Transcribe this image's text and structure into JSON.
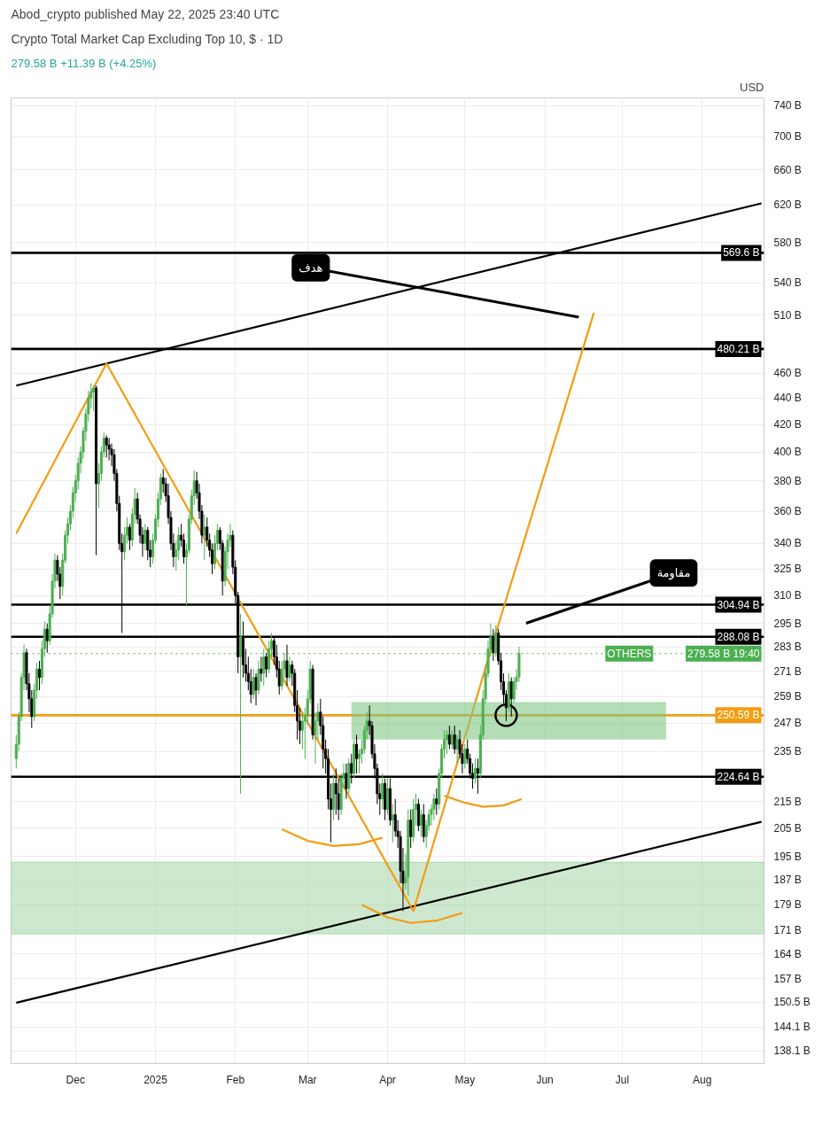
{
  "chart_data": {
    "type": "candlestick",
    "title": "Crypto Total Market Cap Excluding Top 10, $ · 1D",
    "subtitle": "279.58 B  +11.39 B (+4.25%)",
    "ylabel": "USD",
    "annotations": [
      "Abod_crypto published May 22, 2025 23:40 UTC",
      "هدف",
      "مقاومة",
      {
        "text": "OTHERS",
        "x": "2025-07-13",
        "y": 279.58
      }
    ],
    "log": true,
    "grid": true,
    "xlim": [
      "2024-11-06",
      "2025-08-25"
    ],
    "ylim": [
      135,
      750
    ],
    "xticks": [
      {
        "value": "2024-12-01",
        "label": "Dec"
      },
      {
        "value": "2025-01-01",
        "label": "2025"
      },
      {
        "value": "2025-02-01",
        "label": "Feb"
      },
      {
        "value": "2025-03-01",
        "label": "Mar"
      },
      {
        "value": "2025-04-01",
        "label": "Apr"
      },
      {
        "value": "2025-05-01",
        "label": "May"
      },
      {
        "value": "2025-06-01",
        "label": "Jun"
      },
      {
        "value": "2025-07-01",
        "label": "Jul"
      },
      {
        "value": "2025-08-01",
        "label": "Aug"
      }
    ],
    "yticks": [
      {
        "value": 740,
        "label": "740 B"
      },
      {
        "value": 700,
        "label": "700 B"
      },
      {
        "value": 660,
        "label": "660 B"
      },
      {
        "value": 620,
        "label": "620 B"
      },
      {
        "value": 580,
        "label": "580 B"
      },
      {
        "value": 540,
        "label": "540 B"
      },
      {
        "value": 510,
        "label": "510 B"
      },
      {
        "value": 460,
        "label": "460 B"
      },
      {
        "value": 440,
        "label": "440 B"
      },
      {
        "value": 420,
        "label": "420 B"
      },
      {
        "value": 400,
        "label": "400 B"
      },
      {
        "value": 380,
        "label": "380 B"
      },
      {
        "value": 360,
        "label": "360 B"
      },
      {
        "value": 340,
        "label": "340 B"
      },
      {
        "value": 325,
        "label": "325 B"
      },
      {
        "value": 310,
        "label": "310 B"
      },
      {
        "value": 295,
        "label": "295 B"
      },
      {
        "value": 283,
        "label": "283 B"
      },
      {
        "value": 271,
        "label": "271 B"
      },
      {
        "value": 259,
        "label": "259 B"
      },
      {
        "value": 247,
        "label": "247 B"
      },
      {
        "value": 235,
        "label": "235 B"
      },
      {
        "value": 215,
        "label": "215 B"
      },
      {
        "value": 205,
        "label": "205 B"
      },
      {
        "value": 195,
        "label": "195 B"
      },
      {
        "value": 187,
        "label": "187 B"
      },
      {
        "value": 179,
        "label": "179 B"
      },
      {
        "value": 171,
        "label": "171 B"
      },
      {
        "value": 164,
        "label": "164 B"
      },
      {
        "value": 157,
        "label": "157 B"
      },
      {
        "value": 150.5,
        "label": "150.5 B"
      },
      {
        "value": 144.1,
        "label": "144.1 B"
      },
      {
        "value": 138.1,
        "label": "138.1 B"
      }
    ],
    "ref_lines": [
      {
        "axis": "y",
        "value": 569.6,
        "label": "569.6 B",
        "color": "#000000"
      },
      {
        "axis": "y",
        "value": 480.21,
        "label": "480.21 B",
        "color": "#000000"
      },
      {
        "axis": "y",
        "value": 304.94,
        "label": "304.94 B",
        "color": "#000000"
      },
      {
        "axis": "y",
        "value": 288.08,
        "label": "288.08 B",
        "color": "#000000"
      },
      {
        "axis": "y",
        "value": 279.58,
        "label": "279.58 B 19:40",
        "color": "#4caf50",
        "line_style": "dotted"
      },
      {
        "axis": "y",
        "value": 250.59,
        "label": "250.59 B",
        "color": "#f39c12"
      },
      {
        "axis": "y",
        "value": 224.64,
        "label": "224.64 B",
        "color": "#000000"
      }
    ],
    "bands": [
      {
        "axis": "y",
        "from": 170,
        "to": 193,
        "color": "#a5d6a7"
      }
    ],
    "series": [
      {
        "type": "line",
        "color": "#000000",
        "x": [
          "2024-11-08",
          "2025-08-24"
        ],
        "values": [
          450,
          622
        ]
      },
      {
        "type": "line",
        "color": "#000000",
        "x": [
          "2024-11-08",
          "2025-08-24"
        ],
        "values": [
          150.4,
          207.4
        ]
      },
      {
        "type": "line",
        "color": "#f39c12",
        "x": [
          "2024-11-08",
          "2024-12-13",
          "2025-04-11",
          "2025-05-13",
          "2025-06-20"
        ],
        "values": [
          346,
          468,
          177,
          290,
          512
        ]
      },
      {
        "type": "line",
        "color": "#f39c12",
        "x": [
          "2025-02-19",
          "2025-03-01",
          "2025-03-11",
          "2025-03-21",
          "2025-03-30"
        ],
        "values": [
          204.7,
          200.5,
          198.7,
          199.3,
          201.6
        ]
      },
      {
        "type": "line",
        "color": "#f39c12",
        "x": [
          "2025-03-22",
          "2025-04-01",
          "2025-04-10",
          "2025-04-20",
          "2025-04-30"
        ],
        "values": [
          179,
          175,
          173.3,
          174,
          176.4
        ]
      },
      {
        "type": "line",
        "color": "#f39c12",
        "x": [
          "2025-04-23",
          "2025-05-01",
          "2025-05-08",
          "2025-05-16",
          "2025-05-23"
        ],
        "values": [
          217.2,
          214.5,
          213,
          213.5,
          215.9
        ]
      },
      {
        "type": "line",
        "color": "#81c784",
        "x": [
          "2025-03-18",
          "2025-07-18"
        ],
        "values": [
          null,
          null
        ],
        "lower": [
          240,
          240
        ],
        "upper": [
          256.5,
          256.5
        ]
      },
      {
        "type": "scatter",
        "marker": "circle",
        "color": "#000000",
        "x": [
          "2025-05-17"
        ],
        "values": [
          250.59
        ]
      }
    ],
    "x": [
      "2024-11-08",
      "2024-11-09",
      "2024-11-10",
      "2024-11-11",
      "2024-11-12",
      "2024-11-13",
      "2024-11-14",
      "2024-11-15",
      "2024-11-16",
      "2024-11-17",
      "2024-11-18",
      "2024-11-19",
      "2024-11-20",
      "2024-11-21",
      "2024-11-22",
      "2024-11-23",
      "2024-11-24",
      "2024-11-25",
      "2024-11-26",
      "2024-11-27",
      "2024-11-28",
      "2024-11-29",
      "2024-11-30",
      "2024-12-01",
      "2024-12-02",
      "2024-12-03",
      "2024-12-04",
      "2024-12-05",
      "2024-12-06",
      "2024-12-07",
      "2024-12-08",
      "2024-12-09",
      "2024-12-10",
      "2024-12-11",
      "2024-12-12",
      "2024-12-13",
      "2024-12-14",
      "2024-12-15",
      "2024-12-16",
      "2024-12-17",
      "2024-12-18",
      "2024-12-19",
      "2024-12-20",
      "2024-12-21",
      "2024-12-22",
      "2024-12-23",
      "2024-12-24",
      "2024-12-25",
      "2024-12-26",
      "2024-12-27",
      "2024-12-28",
      "2024-12-29",
      "2024-12-30",
      "2024-12-31",
      "2025-01-01",
      "2025-01-02",
      "2025-01-03",
      "2025-01-04",
      "2025-01-05",
      "2025-01-06",
      "2025-01-07",
      "2025-01-08",
      "2025-01-09",
      "2025-01-10",
      "2025-01-11",
      "2025-01-12",
      "2025-01-13",
      "2025-01-14",
      "2025-01-15",
      "2025-01-16",
      "2025-01-17",
      "2025-01-18",
      "2025-01-19",
      "2025-01-20",
      "2025-01-21",
      "2025-01-22",
      "2025-01-23",
      "2025-01-24",
      "2025-01-25",
      "2025-01-26",
      "2025-01-27",
      "2025-01-28",
      "2025-01-29",
      "2025-01-30",
      "2025-01-31",
      "2025-02-01",
      "2025-02-02",
      "2025-02-03",
      "2025-02-04",
      "2025-02-05",
      "2025-02-06",
      "2025-02-07",
      "2025-02-08",
      "2025-02-09",
      "2025-02-10",
      "2025-02-11",
      "2025-02-12",
      "2025-02-13",
      "2025-02-14",
      "2025-02-15",
      "2025-02-16",
      "2025-02-17",
      "2025-02-18",
      "2025-02-19",
      "2025-02-20",
      "2025-02-21",
      "2025-02-22",
      "2025-02-23",
      "2025-02-24",
      "2025-02-25",
      "2025-02-26",
      "2025-02-27",
      "2025-02-28",
      "2025-03-01",
      "2025-03-02",
      "2025-03-03",
      "2025-03-04",
      "2025-03-05",
      "2025-03-06",
      "2025-03-07",
      "2025-03-08",
      "2025-03-09",
      "2025-03-10",
      "2025-03-11",
      "2025-03-12",
      "2025-03-13",
      "2025-03-14",
      "2025-03-15",
      "2025-03-16",
      "2025-03-17",
      "2025-03-18",
      "2025-03-19",
      "2025-03-20",
      "2025-03-21",
      "2025-03-22",
      "2025-03-23",
      "2025-03-24",
      "2025-03-25",
      "2025-03-26",
      "2025-03-27",
      "2025-03-28",
      "2025-03-29",
      "2025-03-30",
      "2025-03-31",
      "2025-04-01",
      "2025-04-02",
      "2025-04-03",
      "2025-04-04",
      "2025-04-05",
      "2025-04-06",
      "2025-04-07",
      "2025-04-08",
      "2025-04-09",
      "2025-04-10",
      "2025-04-11",
      "2025-04-12",
      "2025-04-13",
      "2025-04-14",
      "2025-04-15",
      "2025-04-16",
      "2025-04-17",
      "2025-04-18",
      "2025-04-19",
      "2025-04-20",
      "2025-04-21",
      "2025-04-22",
      "2025-04-23",
      "2025-04-24",
      "2025-04-25",
      "2025-04-26",
      "2025-04-27",
      "2025-04-28",
      "2025-04-29",
      "2025-04-30",
      "2025-05-01",
      "2025-05-02",
      "2025-05-03",
      "2025-05-04",
      "2025-05-05",
      "2025-05-06",
      "2025-05-07",
      "2025-05-08",
      "2025-05-09",
      "2025-05-10",
      "2025-05-11",
      "2025-05-12",
      "2025-05-13",
      "2025-05-14",
      "2025-05-15",
      "2025-05-16",
      "2025-05-17",
      "2025-05-18",
      "2025-05-19",
      "2025-05-20",
      "2025-05-21",
      "2025-05-22"
    ],
    "ohlc": [
      [
        232,
        242,
        228,
        238
      ],
      [
        238,
        252,
        235,
        250
      ],
      [
        250,
        270,
        248,
        268
      ],
      [
        268,
        284,
        262,
        280
      ],
      [
        280,
        282,
        262,
        265
      ],
      [
        265,
        270,
        252,
        258
      ],
      [
        258,
        262,
        245,
        250
      ],
      [
        250,
        265,
        248,
        262
      ],
      [
        262,
        275,
        258,
        272
      ],
      [
        272,
        276,
        262,
        268
      ],
      [
        268,
        286,
        265,
        282
      ],
      [
        282,
        296,
        278,
        292
      ],
      [
        292,
        295,
        280,
        286
      ],
      [
        286,
        304,
        284,
        300
      ],
      [
        300,
        322,
        298,
        318
      ],
      [
        318,
        334,
        314,
        330
      ],
      [
        330,
        333,
        318,
        322
      ],
      [
        322,
        326,
        308,
        315
      ],
      [
        315,
        334,
        310,
        330
      ],
      [
        330,
        348,
        328,
        345
      ],
      [
        345,
        356,
        340,
        352
      ],
      [
        352,
        364,
        348,
        360
      ],
      [
        360,
        376,
        356,
        372
      ],
      [
        372,
        384,
        366,
        380
      ],
      [
        380,
        396,
        374,
        392
      ],
      [
        392,
        404,
        385,
        400
      ],
      [
        400,
        418,
        395,
        415
      ],
      [
        415,
        432,
        408,
        428
      ],
      [
        428,
        446,
        422,
        440
      ],
      [
        440,
        452,
        432,
        445
      ],
      [
        445,
        450,
        430,
        448
      ],
      [
        448,
        450,
        333,
        378
      ],
      [
        378,
        392,
        362,
        385
      ],
      [
        385,
        404,
        380,
        400
      ],
      [
        400,
        414,
        396,
        410
      ],
      [
        410,
        412,
        396,
        405
      ],
      [
        405,
        410,
        394,
        402
      ],
      [
        402,
        406,
        390,
        398
      ],
      [
        398,
        402,
        380,
        385
      ],
      [
        385,
        388,
        360,
        365
      ],
      [
        365,
        370,
        336,
        340
      ],
      [
        340,
        346,
        290,
        335
      ],
      [
        335,
        350,
        330,
        345
      ],
      [
        345,
        356,
        340,
        350
      ],
      [
        350,
        352,
        336,
        342
      ],
      [
        342,
        362,
        338,
        358
      ],
      [
        358,
        375,
        352,
        368
      ],
      [
        368,
        372,
        352,
        355
      ],
      [
        355,
        358,
        340,
        345
      ],
      [
        345,
        350,
        332,
        340
      ],
      [
        340,
        352,
        336,
        348
      ],
      [
        348,
        350,
        330,
        336
      ],
      [
        336,
        342,
        326,
        332
      ],
      [
        332,
        346,
        328,
        342
      ],
      [
        342,
        358,
        340,
        355
      ],
      [
        355,
        372,
        350,
        368
      ],
      [
        368,
        385,
        364,
        382
      ],
      [
        382,
        388,
        372,
        378
      ],
      [
        378,
        382,
        366,
        370
      ],
      [
        370,
        378,
        352,
        356
      ],
      [
        356,
        360,
        336,
        340
      ],
      [
        340,
        346,
        326,
        332
      ],
      [
        332,
        342,
        324,
        336
      ],
      [
        336,
        350,
        330,
        345
      ],
      [
        345,
        352,
        338,
        342
      ],
      [
        342,
        346,
        328,
        332
      ],
      [
        332,
        340,
        304,
        336
      ],
      [
        336,
        358,
        334,
        355
      ],
      [
        355,
        374,
        352,
        370
      ],
      [
        370,
        387,
        364,
        380
      ],
      [
        380,
        386,
        368,
        372
      ],
      [
        372,
        378,
        355,
        360
      ],
      [
        360,
        364,
        340,
        345
      ],
      [
        345,
        358,
        330,
        350
      ],
      [
        350,
        356,
        338,
        342
      ],
      [
        342,
        346,
        332,
        336
      ],
      [
        336,
        340,
        322,
        328
      ],
      [
        328,
        345,
        325,
        340
      ],
      [
        340,
        352,
        336,
        348
      ],
      [
        348,
        350,
        336,
        340
      ],
      [
        340,
        342,
        310,
        318
      ],
      [
        318,
        338,
        315,
        335
      ],
      [
        335,
        346,
        325,
        342
      ],
      [
        342,
        352,
        338,
        345
      ],
      [
        345,
        348,
        322,
        326
      ],
      [
        326,
        330,
        305,
        310
      ],
      [
        310,
        312,
        270,
        278
      ],
      [
        278,
        300,
        218,
        288
      ],
      [
        288,
        296,
        268,
        274
      ],
      [
        274,
        282,
        266,
        270
      ],
      [
        270,
        278,
        262,
        266
      ],
      [
        266,
        272,
        256,
        260
      ],
      [
        260,
        272,
        258,
        268
      ],
      [
        268,
        270,
        255,
        262
      ],
      [
        262,
        276,
        260,
        272
      ],
      [
        272,
        278,
        266,
        270
      ],
      [
        270,
        282,
        264,
        278
      ],
      [
        278,
        280,
        268,
        272
      ],
      [
        272,
        286,
        270,
        282
      ],
      [
        282,
        290,
        278,
        286
      ],
      [
        286,
        288,
        274,
        278
      ],
      [
        278,
        284,
        268,
        272
      ],
      [
        272,
        276,
        260,
        264
      ],
      [
        264,
        276,
        262,
        272
      ],
      [
        272,
        280,
        268,
        276
      ],
      [
        276,
        284,
        264,
        268
      ],
      [
        268,
        278,
        266,
        274
      ],
      [
        274,
        276,
        264,
        270
      ],
      [
        270,
        272,
        252,
        255
      ],
      [
        255,
        262,
        240,
        248
      ],
      [
        248,
        254,
        238,
        244
      ],
      [
        244,
        252,
        236,
        248
      ],
      [
        248,
        254,
        232,
        250
      ],
      [
        250,
        262,
        246,
        258
      ],
      [
        258,
        276,
        256,
        272
      ],
      [
        272,
        274,
        240,
        242
      ],
      [
        242,
        252,
        230,
        248
      ],
      [
        248,
        256,
        240,
        252
      ],
      [
        252,
        258,
        242,
        246
      ],
      [
        246,
        250,
        228,
        236
      ],
      [
        236,
        240,
        226,
        232
      ],
      [
        232,
        236,
        212,
        216
      ],
      [
        216,
        222,
        200,
        212
      ],
      [
        212,
        226,
        208,
        222
      ],
      [
        222,
        228,
        210,
        218
      ],
      [
        218,
        224,
        208,
        212
      ],
      [
        212,
        226,
        210,
        224
      ],
      [
        224,
        230,
        220,
        226
      ],
      [
        226,
        230,
        216,
        220
      ],
      [
        220,
        232,
        218,
        230
      ],
      [
        230,
        234,
        222,
        226
      ],
      [
        226,
        240,
        224,
        238
      ],
      [
        238,
        242,
        226,
        232
      ],
      [
        232,
        236,
        226,
        234
      ],
      [
        234,
        240,
        230,
        236
      ],
      [
        236,
        246,
        234,
        244
      ],
      [
        244,
        252,
        240,
        248
      ],
      [
        248,
        255,
        242,
        246
      ],
      [
        246,
        248,
        232,
        234
      ],
      [
        234,
        238,
        224,
        228
      ],
      [
        228,
        230,
        214,
        218
      ],
      [
        218,
        222,
        210,
        216
      ],
      [
        216,
        226,
        212,
        222
      ],
      [
        222,
        224,
        208,
        212
      ],
      [
        212,
        224,
        210,
        220
      ],
      [
        220,
        224,
        206,
        208
      ],
      [
        208,
        214,
        200,
        210
      ],
      [
        210,
        216,
        202,
        204
      ],
      [
        204,
        208,
        198,
        202
      ],
      [
        202,
        204,
        186,
        190
      ],
      [
        190,
        198,
        177,
        186
      ],
      [
        186,
        196,
        184,
        188
      ],
      [
        188,
        212,
        182,
        208
      ],
      [
        208,
        212,
        198,
        202
      ],
      [
        202,
        216,
        200,
        212
      ],
      [
        212,
        218,
        206,
        214
      ],
      [
        214,
        216,
        204,
        206
      ],
      [
        206,
        212,
        202,
        210
      ],
      [
        210,
        214,
        200,
        202
      ],
      [
        202,
        208,
        198,
        206
      ],
      [
        206,
        212,
        204,
        210
      ],
      [
        210,
        214,
        206,
        212
      ],
      [
        212,
        218,
        208,
        216
      ],
      [
        216,
        220,
        210,
        214
      ],
      [
        214,
        228,
        212,
        226
      ],
      [
        226,
        238,
        224,
        236
      ],
      [
        236,
        244,
        232,
        240
      ],
      [
        240,
        244,
        234,
        242
      ],
      [
        242,
        246,
        236,
        238
      ],
      [
        238,
        244,
        236,
        242
      ],
      [
        242,
        246,
        234,
        236
      ],
      [
        236,
        242,
        230,
        240
      ],
      [
        240,
        244,
        232,
        234
      ],
      [
        234,
        238,
        226,
        230
      ],
      [
        230,
        238,
        228,
        236
      ],
      [
        236,
        240,
        230,
        232
      ],
      [
        232,
        234,
        224,
        226
      ],
      [
        226,
        230,
        220,
        224
      ],
      [
        224,
        232,
        222,
        228
      ],
      [
        228,
        232,
        218,
        226
      ],
      [
        226,
        246,
        224,
        242
      ],
      [
        242,
        262,
        240,
        258
      ],
      [
        258,
        274,
        256,
        270
      ],
      [
        270,
        286,
        268,
        282
      ],
      [
        282,
        295,
        278,
        288
      ],
      [
        288,
        292,
        276,
        280
      ],
      [
        280,
        294,
        278,
        290
      ],
      [
        290,
        292,
        274,
        276
      ],
      [
        276,
        280,
        262,
        266
      ],
      [
        266,
        270,
        256,
        260
      ],
      [
        260,
        262,
        248,
        254
      ],
      [
        254,
        270,
        252,
        266
      ],
      [
        266,
        268,
        250,
        258
      ],
      [
        258,
        268,
        256,
        266
      ],
      [
        266,
        272,
        262,
        268.19
      ],
      [
        268.19,
        283,
        266,
        279.58
      ]
    ],
    "colors": [
      "#4caf50",
      "#4caf50",
      "#4caf50",
      "#4caf50",
      "#000000",
      "#000000",
      "#000000",
      "#4caf50",
      "#4caf50",
      "#000000",
      "#4caf50",
      "#4caf50",
      "#000000",
      "#4caf50",
      "#4caf50",
      "#4caf50",
      "#000000",
      "#000000",
      "#4caf50",
      "#4caf50",
      "#4caf50",
      "#4caf50",
      "#4caf50",
      "#4caf50",
      "#4caf50",
      "#4caf50",
      "#4caf50",
      "#4caf50",
      "#4caf50",
      "#4caf50",
      "#4caf50",
      "#000000",
      "#4caf50",
      "#4caf50",
      "#4caf50",
      "#000000",
      "#000000",
      "#000000",
      "#000000",
      "#000000",
      "#000000",
      "#000000",
      "#4caf50",
      "#4caf50",
      "#000000",
      "#4caf50",
      "#4caf50",
      "#000000",
      "#000000",
      "#000000",
      "#4caf50",
      "#000000",
      "#000000",
      "#4caf50",
      "#4caf50",
      "#4caf50",
      "#4caf50",
      "#000000",
      "#000000",
      "#000000",
      "#000000",
      "#000000",
      "#4caf50",
      "#4caf50",
      "#000000",
      "#000000",
      "#4caf50",
      "#4caf50",
      "#4caf50",
      "#4caf50",
      "#000000",
      "#000000",
      "#000000",
      "#4caf50",
      "#000000",
      "#000000",
      "#000000",
      "#4caf50",
      "#4caf50",
      "#000000",
      "#000000",
      "#4caf50",
      "#4caf50",
      "#4caf50",
      "#000000",
      "#000000",
      "#000000",
      "#4caf50",
      "#000000",
      "#000000",
      "#000000",
      "#000000",
      "#4caf50",
      "#000000",
      "#4caf50",
      "#000000",
      "#4caf50",
      "#000000",
      "#4caf50",
      "#4caf50",
      "#000000",
      "#000000",
      "#000000",
      "#4caf50",
      "#4caf50",
      "#000000",
      "#4caf50",
      "#000000",
      "#000000",
      "#000000",
      "#000000",
      "#4caf50",
      "#4caf50",
      "#4caf50",
      "#4caf50",
      "#000000",
      "#4caf50",
      "#4caf50",
      "#000000",
      "#000000",
      "#000000",
      "#000000",
      "#000000",
      "#4caf50",
      "#000000",
      "#000000",
      "#4caf50",
      "#4caf50",
      "#000000",
      "#4caf50",
      "#000000",
      "#4caf50",
      "#000000",
      "#4caf50",
      "#4caf50",
      "#4caf50",
      "#4caf50",
      "#000000",
      "#000000",
      "#000000",
      "#000000",
      "#000000",
      "#4caf50",
      "#000000",
      "#4caf50",
      "#000000",
      "#4caf50",
      "#000000",
      "#000000",
      "#000000",
      "#000000",
      "#4caf50",
      "#4caf50",
      "#000000",
      "#4caf50",
      "#4caf50",
      "#000000",
      "#4caf50",
      "#000000",
      "#4caf50",
      "#4caf50",
      "#4caf50",
      "#4caf50",
      "#000000",
      "#4caf50",
      "#4caf50",
      "#4caf50",
      "#4caf50",
      "#000000",
      "#4caf50",
      "#000000",
      "#4caf50",
      "#000000",
      "#000000",
      "#4caf50",
      "#000000",
      "#000000",
      "#000000",
      "#4caf50",
      "#000000",
      "#4caf50",
      "#4caf50",
      "#4caf50",
      "#4caf50",
      "#4caf50",
      "#000000",
      "#4caf50",
      "#000000",
      "#000000",
      "#000000",
      "#000000",
      "#4caf50",
      "#000000",
      "#4caf50",
      "#4caf50",
      "#4caf50"
    ]
  }
}
